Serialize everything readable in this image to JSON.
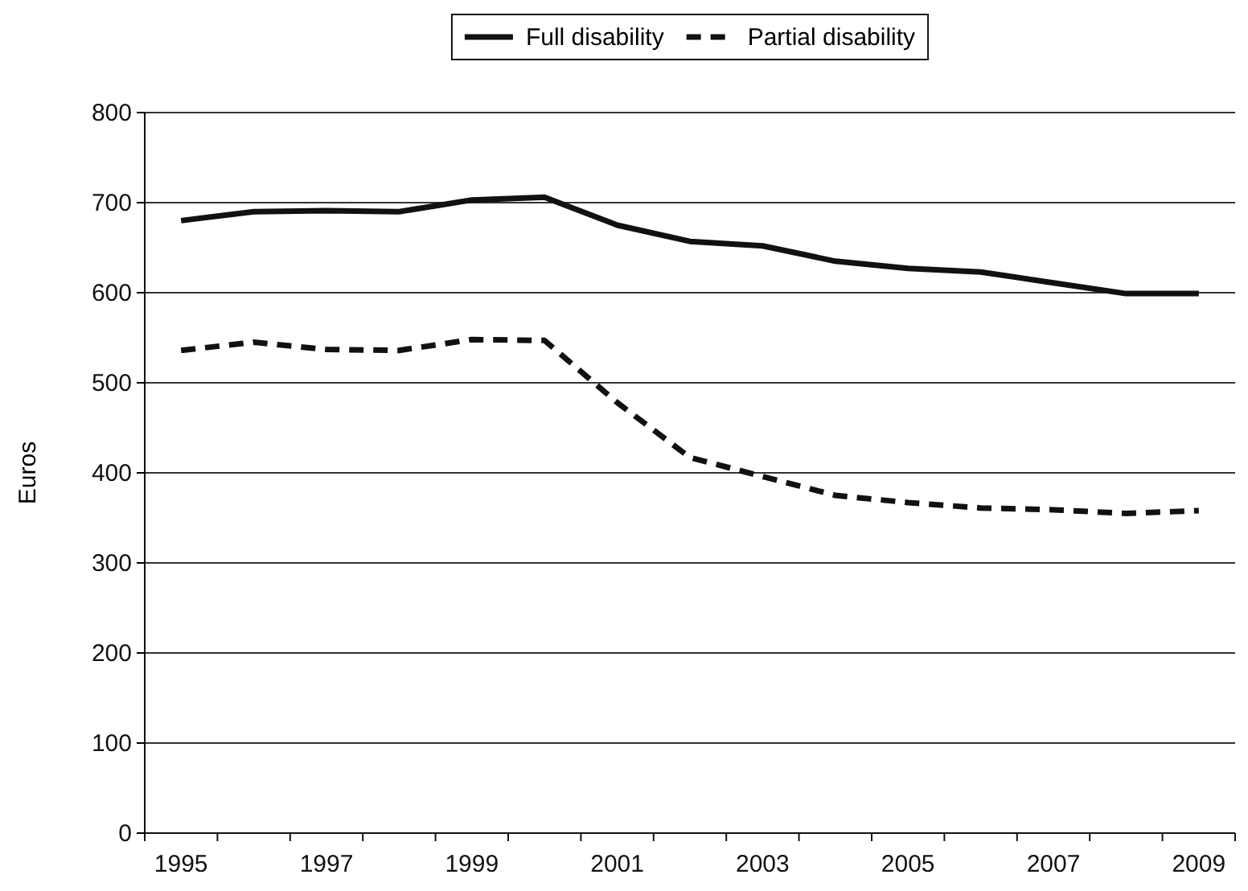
{
  "chart_data": {
    "type": "line",
    "ylabel": "Euros",
    "categories": [
      "1995",
      null,
      "1997",
      null,
      "1999",
      null,
      "2001",
      null,
      "2003",
      null,
      "2005",
      null,
      "2007",
      null,
      "2009"
    ],
    "series": [
      {
        "name": "Full disability",
        "color": "#111111",
        "line_style": "solid",
        "values": [
          680,
          690,
          691,
          690,
          703,
          706,
          675,
          657,
          652,
          635,
          627,
          623,
          611,
          599,
          599
        ]
      },
      {
        "name": "Partial disability",
        "color": "#111111",
        "line_style": "dashed",
        "values": [
          536,
          545,
          537,
          536,
          548,
          547,
          478,
          417,
          396,
          375,
          367,
          361,
          359,
          355,
          358
        ]
      }
    ],
    "ylim": [
      0,
      800
    ],
    "yticks": [
      0,
      100,
      200,
      300,
      400,
      500,
      600,
      700,
      800
    ],
    "grid": "y",
    "legend": "top",
    "marker": "none"
  }
}
